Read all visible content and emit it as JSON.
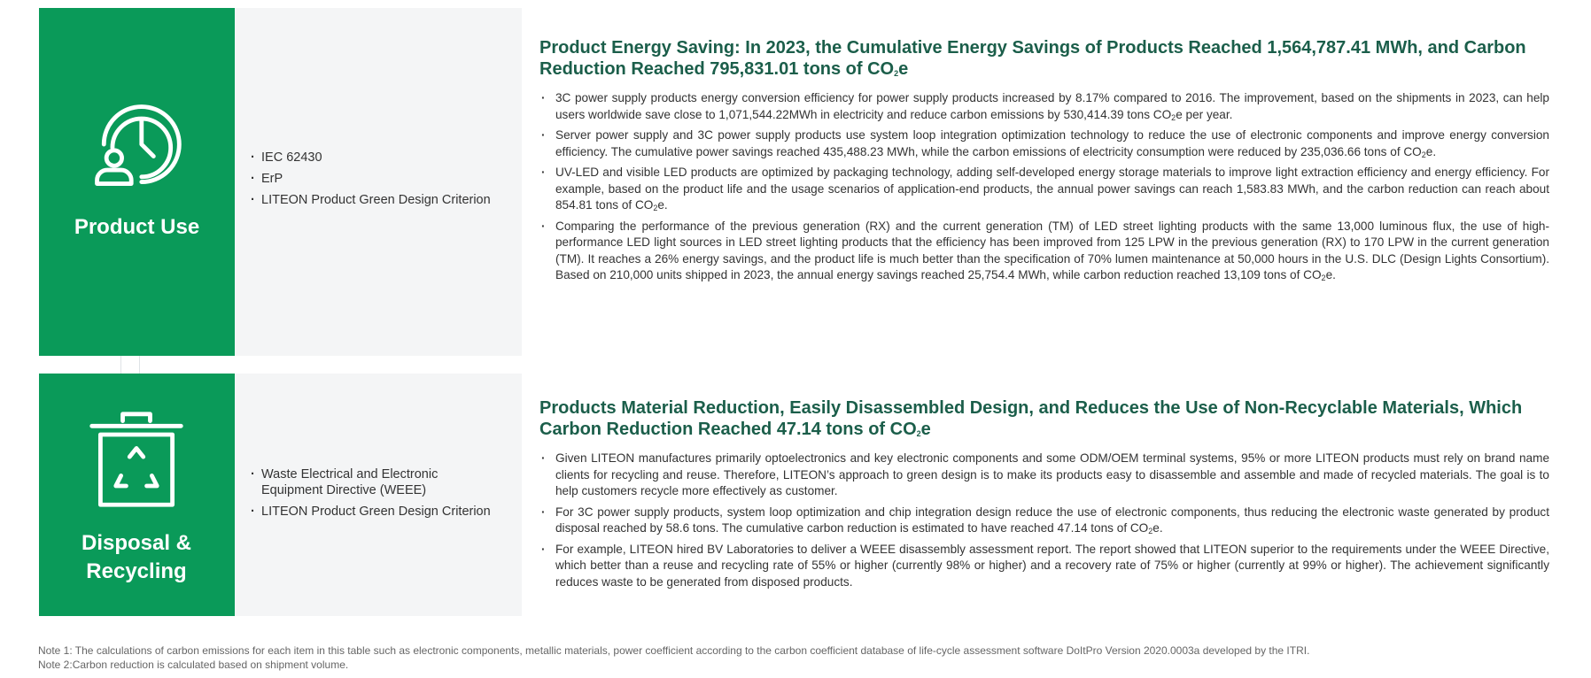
{
  "rows": [
    {
      "title": "Product Use",
      "icon": "clock-person-icon",
      "standards": [
        "IEC 62430",
        "ErP",
        "LITEON Product Green Design Criterion"
      ],
      "heading": "Product Energy Saving: In 2023, the Cumulative Energy Savings of Products Reached 1,564,787.41 MWh, and Carbon Reduction Reached 795,831.01 tons of CO",
      "heading_sub": "2",
      "heading_end": "e",
      "bullets": [
        {
          "text": "3C power supply products energy conversion efficiency for power supply products increased by 8.17% compared to 2016. The improvement, based on the shipments in 2023, can help users worldwide save close to 1,071,544.22MWh in electricity and reduce carbon emissions by 530,414.39 tons CO",
          "sub": "2",
          "end": "e per year."
        },
        {
          "text": "Server power supply and 3C power supply products use system loop integration optimization technology to reduce the use of electronic components and improve energy conversion efficiency. The cumulative power savings reached 435,488.23 MWh, while the carbon emissions of electricity consumption were reduced by 235,036.66 tons of CO",
          "sub": "2",
          "end": "e."
        },
        {
          "text": "UV-LED and visible LED products are optimized by packaging technology, adding self-developed energy storage materials to improve light extraction efficiency and energy efficiency. For example, based on the product life and the usage scenarios of application-end products, the annual power savings can reach 1,583.83 MWh, and the carbon reduction can reach about 854.81 tons of CO",
          "sub": "2",
          "end": "e."
        },
        {
          "text": "Comparing the performance of the previous generation (RX) and the current generation (TM) of LED street lighting products with the same 13,000 luminous flux, the use of high-performance LED light sources in LED street lighting products that the efficiency has been improved from 125 LPW in the previous generation (RX) to 170 LPW in the current generation (TM). It reaches a 26% energy savings, and the product life is much better than the specification of 70% lumen maintenance at 50,000 hours in the U.S. DLC (Design Lights Consortium). Based on 210,000 units shipped in 2023, the annual energy savings reached 25,754.4 MWh, while carbon reduction reached 13,109 tons of CO",
          "sub": "2",
          "end": "e."
        }
      ]
    },
    {
      "title": "Disposal & Recycling",
      "icon": "recycle-bin-icon",
      "standards": [
        "Waste Electrical and Electronic Equipment Directive (WEEE)",
        "LITEON Product Green Design Criterion"
      ],
      "heading": "Products Material Reduction, Easily Disassembled Design, and Reduces the Use of Non-Recyclable Materials, Which Carbon Reduction Reached 47.14 tons of CO",
      "heading_sub": "2",
      "heading_end": "e",
      "bullets": [
        {
          "text": "Given LITEON manufactures primarily optoelectronics and key electronic components and some ODM/OEM terminal systems, 95% or more LITEON products must rely on brand name clients for recycling and reuse. Therefore, LITEON’s approach to green design is to make its products easy to disassemble and assemble and made of recycled materials. The goal is to help customers recycle more effectively as customer.",
          "sub": "",
          "end": ""
        },
        {
          "text": "For 3C power supply products, system loop optimization and chip integration design reduce the use of electronic components, thus reducing the electronic waste generated by product disposal reached by 58.6 tons. The cumulative carbon reduction is estimated to have reached 47.14 tons of CO",
          "sub": "2",
          "end": "e."
        },
        {
          "text": "For example, LITEON hired BV Laboratories to deliver a WEEE disassembly assessment report. The report showed that LITEON superior to the requirements under the WEEE Directive, which better than a reuse and recycling rate of 55% or higher (currently 98% or higher) and a recovery rate of 75% or higher (currently at 99% or higher). The achievement significantly reduces waste to be generated from disposed products.",
          "sub": "",
          "end": ""
        }
      ]
    }
  ],
  "notes": [
    "Note 1: The calculations of carbon emissions for each item in this table such as electronic components, metallic materials, power coefficient according to the carbon coefficient database of life-cycle assessment software DoItPro Version 2020.0003a developed by the ITRI.",
    "Note 2:Carbon reduction is calculated based on shipment volume."
  ],
  "colors": {
    "green": "#0a9a59",
    "heading": "#1b5e4a",
    "panel": "#f4f5f6"
  }
}
